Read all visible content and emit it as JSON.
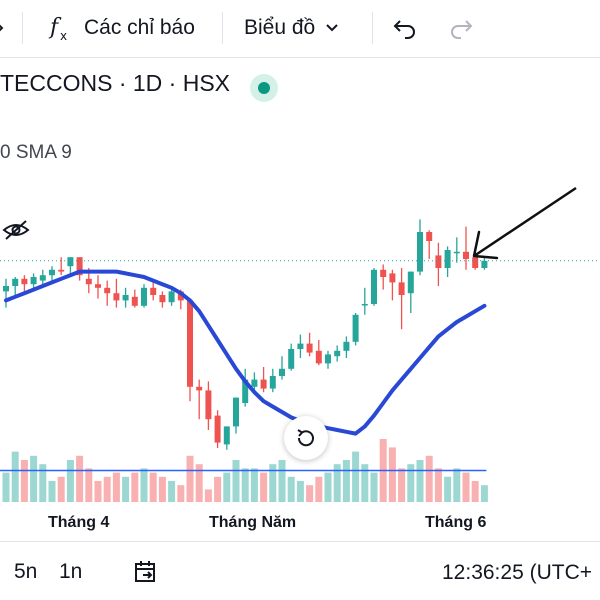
{
  "toolbar": {
    "indicators_label": "Các chỉ báo",
    "chart_type_label": "Biểu đồ",
    "icons": [
      "indicator-fx-icon",
      "chevron-down-icon",
      "undo-icon",
      "redo-icon"
    ]
  },
  "symbol": {
    "title": "TECCONS · 1D · HSX",
    "market_status_color": "#089981"
  },
  "indicator": {
    "label": "0 SMA 9"
  },
  "chart_data": {
    "type": "candlestick",
    "x_ticks": [
      "Tháng 4",
      "Tháng Năm",
      "Tháng 6"
    ],
    "colors": {
      "up": "#26a69a",
      "down": "#ef5350",
      "sma": "#2948d6",
      "volume_avg": "#2962ff"
    },
    "candles": [
      {
        "o": 67,
        "h": 74,
        "l": 58,
        "c": 70
      },
      {
        "o": 70,
        "h": 75,
        "l": 64,
        "c": 74
      },
      {
        "o": 74,
        "h": 76,
        "l": 67,
        "c": 71
      },
      {
        "o": 71,
        "h": 77,
        "l": 68,
        "c": 75
      },
      {
        "o": 73,
        "h": 79,
        "l": 71,
        "c": 76
      },
      {
        "o": 76,
        "h": 81,
        "l": 73,
        "c": 79
      },
      {
        "o": 79,
        "h": 86,
        "l": 76,
        "c": 78
      },
      {
        "o": 81,
        "h": 86,
        "l": 76,
        "c": 86
      },
      {
        "o": 86,
        "h": 86,
        "l": 73,
        "c": 76
      },
      {
        "o": 74,
        "h": 80,
        "l": 66,
        "c": 71
      },
      {
        "o": 71,
        "h": 76,
        "l": 63,
        "c": 69
      },
      {
        "o": 69,
        "h": 73,
        "l": 59,
        "c": 66
      },
      {
        "o": 66,
        "h": 74,
        "l": 58,
        "c": 62
      },
      {
        "o": 62,
        "h": 69,
        "l": 58,
        "c": 65
      },
      {
        "o": 64,
        "h": 68,
        "l": 58,
        "c": 59
      },
      {
        "o": 59,
        "h": 71,
        "l": 58,
        "c": 69
      },
      {
        "o": 69,
        "h": 72,
        "l": 62,
        "c": 65
      },
      {
        "o": 65,
        "h": 67,
        "l": 58,
        "c": 61
      },
      {
        "o": 61,
        "h": 69,
        "l": 59,
        "c": 67
      },
      {
        "o": 67,
        "h": 68,
        "l": 57,
        "c": 62
      },
      {
        "o": 62,
        "h": 63,
        "l": 6,
        "c": 14
      },
      {
        "o": 14,
        "h": 18,
        "l": -4,
        "c": 12
      },
      {
        "o": 12,
        "h": 17,
        "l": -10,
        "c": -4
      },
      {
        "o": -2,
        "h": 1,
        "l": -20,
        "c": -17
      },
      {
        "o": -18,
        "h": -8,
        "l": -21,
        "c": -8
      },
      {
        "o": -8,
        "h": 8,
        "l": -12,
        "c": 8
      },
      {
        "o": 5,
        "h": 24,
        "l": 3,
        "c": 18
      },
      {
        "o": 14,
        "h": 22,
        "l": 10,
        "c": 18
      },
      {
        "o": 18,
        "h": 25,
        "l": 11,
        "c": 13
      },
      {
        "o": 13,
        "h": 24,
        "l": 11,
        "c": 20
      },
      {
        "o": 20,
        "h": 31,
        "l": 18,
        "c": 24
      },
      {
        "o": 24,
        "h": 38,
        "l": 23,
        "c": 35
      },
      {
        "o": 35,
        "h": 43,
        "l": 30,
        "c": 38
      },
      {
        "o": 38,
        "h": 44,
        "l": 31,
        "c": 33
      },
      {
        "o": 34,
        "h": 40,
        "l": 26,
        "c": 27
      },
      {
        "o": 27,
        "h": 34,
        "l": 24,
        "c": 32
      },
      {
        "o": 31,
        "h": 37,
        "l": 28,
        "c": 34
      },
      {
        "o": 34,
        "h": 42,
        "l": 30,
        "c": 39
      },
      {
        "o": 39,
        "h": 55,
        "l": 37,
        "c": 54
      },
      {
        "o": 60,
        "h": 69,
        "l": 54,
        "c": 60
      },
      {
        "o": 60,
        "h": 80,
        "l": 59,
        "c": 79
      },
      {
        "o": 79,
        "h": 82,
        "l": 68,
        "c": 75
      },
      {
        "o": 77,
        "h": 79,
        "l": 62,
        "c": 72
      },
      {
        "o": 72,
        "h": 80,
        "l": 46,
        "c": 65
      },
      {
        "o": 66,
        "h": 78,
        "l": 55,
        "c": 78
      },
      {
        "o": 78,
        "h": 107,
        "l": 76,
        "c": 100
      },
      {
        "o": 100,
        "h": 101,
        "l": 85,
        "c": 95
      },
      {
        "o": 87,
        "h": 94,
        "l": 70,
        "c": 80
      },
      {
        "o": 80,
        "h": 92,
        "l": 75,
        "c": 90
      },
      {
        "o": 89,
        "h": 97,
        "l": 83,
        "c": 89
      },
      {
        "o": 89,
        "h": 103,
        "l": 79,
        "c": 85
      },
      {
        "o": 86,
        "h": 90,
        "l": 79,
        "c": 80
      },
      {
        "o": 80,
        "h": 86,
        "l": 79,
        "c": 84
      }
    ],
    "sma": [
      62,
      64,
      66,
      68,
      70,
      72,
      74,
      76,
      78,
      78,
      78,
      78,
      78,
      77,
      76,
      75,
      73,
      71,
      69,
      66,
      62,
      56,
      48,
      40,
      32,
      24,
      17,
      11,
      6,
      3,
      0,
      -3,
      -5,
      -7,
      -8,
      -9,
      -10,
      -11,
      -12,
      -8,
      -2,
      5,
      12,
      18,
      24,
      30,
      36,
      42,
      46,
      50,
      53,
      56,
      59
    ],
    "volume": [
      14,
      24,
      20,
      22,
      18,
      10,
      12,
      20,
      22,
      16,
      10,
      12,
      14,
      12,
      14,
      16,
      14,
      12,
      10,
      8,
      22,
      18,
      6,
      12,
      14,
      20,
      16,
      16,
      14,
      18,
      20,
      12,
      10,
      8,
      12,
      14,
      18,
      20,
      24,
      18,
      14,
      30,
      26,
      16,
      18,
      20,
      22,
      16,
      12,
      16,
      14,
      10,
      8
    ],
    "volume_ma": 15,
    "price_ref_line": 84
  },
  "footer": {
    "range_5n": "5n",
    "range_1n": "1n",
    "time": "12:36:25 (UTC+"
  }
}
